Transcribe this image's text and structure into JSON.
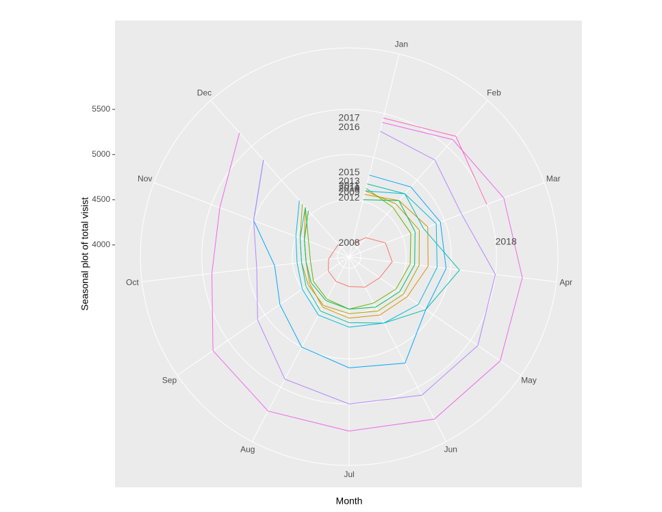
{
  "chart_data": {
    "type": "polar-line",
    "xlabel": "Month",
    "ylabel": "Seasonal plot of total visist",
    "categories": [
      "Jan",
      "Feb",
      "Mar",
      "Apr",
      "May",
      "Jun",
      "Jul",
      "Aug",
      "Sep",
      "Oct",
      "Nov",
      "Dec"
    ],
    "xlim": [
      0.5,
      13.5
    ],
    "ylim": [
      3870,
      6180
    ],
    "yticks": [
      4000,
      4500,
      5000,
      5500
    ],
    "grid": true,
    "series": [
      {
        "name": "2008",
        "color": "#F8766D",
        "values": [
          4020,
          4150,
          4300,
          4350,
          4280,
          4250,
          4200,
          4180,
          4150,
          4100,
          4050,
          4050
        ]
      },
      {
        "name": "2009",
        "color": "#DB8E00",
        "values": [
          4580,
          4700,
          4800,
          4750,
          4650,
          4600,
          4550,
          4500,
          4400,
          4350,
          4400,
          4600
        ]
      },
      {
        "name": "2010",
        "color": "#AEA200",
        "values": [
          4620,
          4650,
          4700,
          4650,
          4600,
          4550,
          4500,
          4480,
          4420,
          4400,
          4450,
          4650
        ]
      },
      {
        "name": "2011",
        "color": "#64B200",
        "values": [
          4650,
          4600,
          4600,
          4550,
          4500,
          4450,
          4450,
          4400,
          4350,
          4300,
          4350,
          4600
        ]
      },
      {
        "name": "2012",
        "color": "#00BD5C",
        "values": [
          4520,
          4700,
          4650,
          4600,
          4550,
          4500,
          4450,
          4420,
          4380,
          4350,
          4400,
          4550
        ]
      },
      {
        "name": "2013",
        "color": "#00C1A7",
        "values": [
          4700,
          4800,
          4750,
          5100,
          4900,
          4700,
          4600,
          4550,
          4450,
          4400,
          4450,
          4600
        ]
      },
      {
        "name": "2014",
        "color": "#00BADE",
        "values": [
          4620,
          4800,
          4900,
          4850,
          4800,
          4700,
          4650,
          4600,
          4500,
          4450,
          4500,
          4700
        ]
      },
      {
        "name": "2015",
        "color": "#00A6FF",
        "values": [
          4800,
          4900,
          4950,
          4950,
          4900,
          5200,
          5100,
          5000,
          4800,
          4700,
          5000,
          5300
        ]
      },
      {
        "name": "2016",
        "color": "#B385FF",
        "values": [
          5300,
          5300,
          5200,
          5500,
          5600,
          5600,
          5500,
          5400,
          5100,
          4900,
          5000,
          5300
        ]
      },
      {
        "name": "2017",
        "color": "#EF67EB",
        "values": [
          5400,
          5600,
          5700,
          5800,
          5900,
          5900,
          5800,
          5800,
          5700,
          5400,
          5400,
          5700
        ]
      },
      {
        "name": "2018",
        "color": "#FF63B6",
        "values": [
          5450,
          5650,
          5500,
          null,
          null,
          null,
          null,
          null,
          null,
          null,
          null,
          null
        ]
      }
    ]
  }
}
